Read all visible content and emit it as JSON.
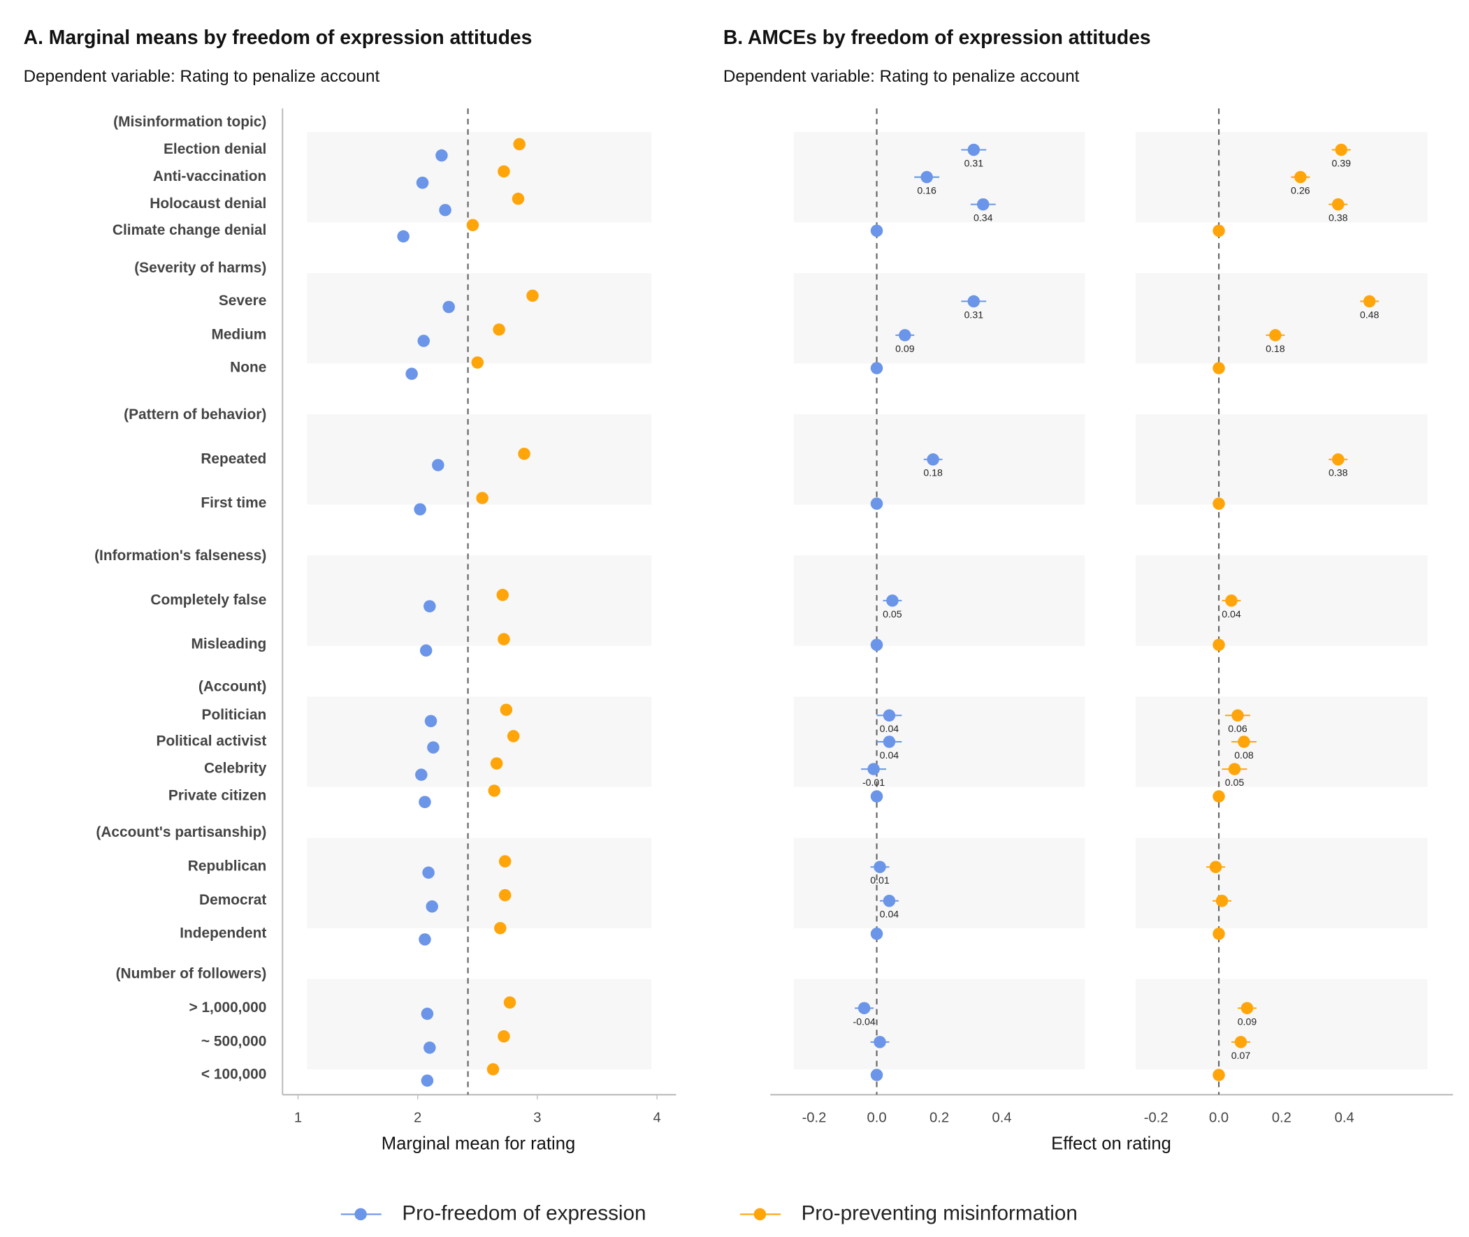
{
  "chart_data": [
    {
      "type": "dot",
      "title": "A. Marginal means by freedom of expression attitudes",
      "subtitle": "Dependent variable: Rating to penalize account",
      "xlabel": "Marginal mean for rating",
      "categories": [
        "(Misinformation topic)",
        "Election denial",
        "Anti-vaccination",
        "Holocaust denial",
        "Climate change denial",
        "(Severity of harms)",
        "Severe",
        "Medium",
        "None",
        "(Pattern of behavior)",
        "Repeated",
        "First time",
        "(Information's falseness)",
        "Completely false",
        "Misleading",
        "(Account)",
        "Politician",
        "Political activist",
        "Celebrity",
        "Private citizen",
        "(Account's partisanship)",
        "Republican",
        "Democrat",
        "Independent",
        "(Number of followers)",
        "> 1,000,000",
        "~ 500,000",
        "< 100,000"
      ],
      "series": [
        {
          "name": "Pro-freedom of expression",
          "color": "#6a95e8",
          "values": [
            null,
            2.2,
            2.04,
            2.23,
            1.88,
            null,
            2.26,
            2.05,
            1.95,
            null,
            2.17,
            2.02,
            null,
            2.1,
            2.07,
            null,
            2.11,
            2.13,
            2.03,
            2.06,
            null,
            2.09,
            2.12,
            2.06,
            null,
            2.08,
            2.1,
            2.08
          ]
        },
        {
          "name": "Pro-preventing misinformation",
          "color": "#ffa50a",
          "values": [
            null,
            2.85,
            2.72,
            2.84,
            2.46,
            null,
            2.96,
            2.68,
            2.5,
            null,
            2.89,
            2.54,
            null,
            2.71,
            2.72,
            null,
            2.74,
            2.8,
            2.66,
            2.64,
            null,
            2.73,
            2.73,
            2.69,
            null,
            2.77,
            2.72,
            2.63
          ]
        }
      ],
      "xlim": [
        0.87,
        4.16
      ],
      "xticks": [
        1,
        2,
        3,
        4
      ],
      "reference_line": 2.42
    },
    {
      "type": "amce",
      "title": "B. AMCEs by freedom of expression attitudes",
      "subtitle": "Dependent variable: Rating to penalize account",
      "xlabel": "Effect on rating",
      "series": [
        {
          "color": "#6a95e8",
          "values": [
            null,
            0.31,
            0.16,
            0.34,
            0,
            null,
            0.31,
            0.09,
            0,
            null,
            0.18,
            0,
            null,
            0.05,
            0,
            null,
            0.04,
            0.04,
            -0.01,
            0,
            null,
            0.01,
            0.04,
            0,
            null,
            -0.04,
            0.01,
            0
          ],
          "errors": [
            null,
            0.04,
            0.04,
            0.04,
            null,
            null,
            0.04,
            0.03,
            null,
            null,
            0.03,
            null,
            null,
            0.03,
            null,
            null,
            0.04,
            0.04,
            0.04,
            null,
            null,
            0.03,
            0.03,
            null,
            null,
            0.03,
            0.03,
            null
          ],
          "value_labels": [
            null,
            "0.31",
            "0.16",
            "0.34",
            null,
            null,
            "0.31",
            "0.09",
            null,
            null,
            "0.18",
            null,
            null,
            "0.05",
            null,
            null,
            "0.04",
            "0.04",
            "-0.01",
            null,
            null,
            "0.01",
            "0.04",
            null,
            null,
            "-0.04",
            null,
            null
          ]
        },
        {
          "color": "#ffa50a",
          "values": [
            null,
            0.39,
            0.26,
            0.38,
            0,
            null,
            0.48,
            0.18,
            0,
            null,
            0.38,
            0,
            null,
            0.04,
            0,
            null,
            0.06,
            0.08,
            0.05,
            0,
            null,
            -0.01,
            0.01,
            0,
            null,
            0.09,
            0.07,
            0
          ],
          "errors": [
            null,
            0.03,
            0.03,
            0.03,
            null,
            null,
            0.03,
            0.03,
            null,
            null,
            0.03,
            null,
            null,
            0.03,
            null,
            null,
            0.04,
            0.04,
            0.04,
            null,
            null,
            0.03,
            0.03,
            null,
            null,
            0.03,
            0.03,
            null
          ],
          "value_labels": [
            null,
            "0.39",
            "0.26",
            "0.38",
            null,
            null,
            "0.48",
            "0.18",
            null,
            null,
            "0.38",
            null,
            null,
            "0.04",
            null,
            null,
            "0.06",
            "0.08",
            "0.05",
            null,
            null,
            null,
            null,
            null,
            null,
            "0.09",
            "0.07",
            null
          ]
        }
      ],
      "xlim": [
        -0.265,
        0.665
      ],
      "xticks": [
        -0.2,
        {
          "value": 0,
          "label": "0.0"
        },
        0.2,
        0.4
      ]
    }
  ]
}
